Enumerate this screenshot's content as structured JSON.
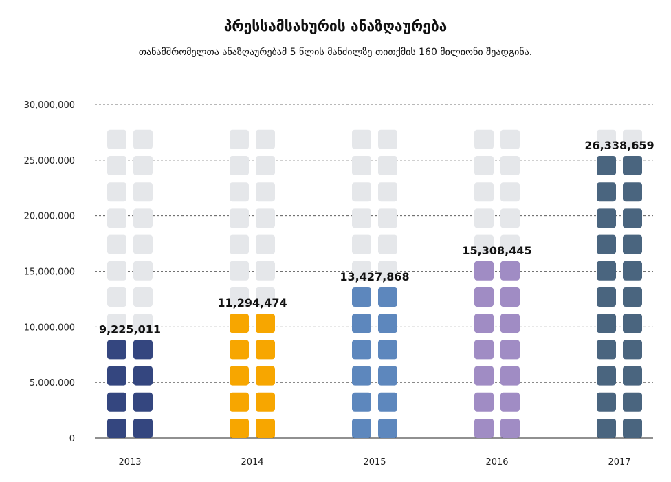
{
  "chart_data": {
    "type": "bar",
    "title": "პრესსამსახურის ანაზღაურება",
    "subtitle": "თანამშრომელთა ანაზღაურებამ 5 წლის მანძილზე თითქმის 160 მილიონი შეადგინა.",
    "categories": [
      "2013",
      "2014",
      "2015",
      "2016",
      "2017"
    ],
    "values": [
      9225011,
      11294474,
      13427868,
      15308445,
      26338659
    ],
    "value_labels": [
      "9,225,011",
      "11,294,474",
      "13,427,868",
      "15,308,445",
      "26,338,659"
    ],
    "unit_per_icon": 2500000,
    "ylim": [
      0,
      30000000
    ],
    "yticks": [
      0,
      5000000,
      10000000,
      15000000,
      20000000,
      25000000,
      30000000
    ],
    "ytick_labels": [
      "0",
      "5,000,000",
      "10,000,000",
      "15,000,000",
      "20,000,000",
      "25,000,000",
      "30,000,000"
    ],
    "grid": true,
    "xlabel": "",
    "ylabel": ""
  },
  "colors": {
    "empty": "#e5e7ea",
    "series": [
      "#34467f",
      "#f7a600",
      "#5d87bd",
      "#a08cc4",
      "#4a657f"
    ],
    "grid": "#444444"
  }
}
